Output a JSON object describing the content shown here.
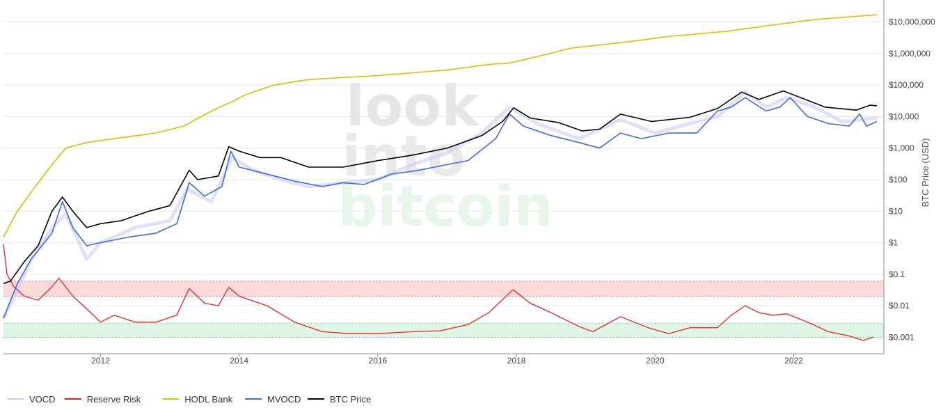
{
  "watermark": {
    "line1": "look",
    "line2": "into",
    "line3": "bitcoin"
  },
  "colors": {
    "vocd": "#c9cdf5",
    "reserve_risk": "#e8231f",
    "hodl_bank": "#d4c200",
    "mvocd": "#3f6ad8",
    "btc_price": "#000000",
    "band_high": "#ffd6d6",
    "band_low": "#dcf4e3"
  },
  "chart_data": {
    "type": "line",
    "xlabel": "",
    "ylabel": "BTC Price (USD)",
    "yscale": "log",
    "xlim": [
      2010.6,
      2023.3
    ],
    "ylim": [
      0.0003,
      50000000
    ],
    "x_ticks": [
      "2012",
      "2014",
      "2016",
      "2018",
      "2020",
      "2022"
    ],
    "y_ticks": [
      "$0.001",
      "$0.01",
      "$0.1",
      "$1",
      "$10",
      "$100",
      "$1,000",
      "$10,000",
      "$100,000",
      "$1,000,000",
      "$10,000,000"
    ],
    "bands": [
      {
        "label": "",
        "from": 0.02,
        "to": 0.06
      },
      {
        "label": "",
        "from": 0.001,
        "to": 0.0028
      }
    ],
    "legend": {
      "placement": "bottom-left"
    },
    "series": [
      {
        "name": "VOCD",
        "points": [
          [
            2010.6,
            0.004
          ],
          [
            2010.8,
            0.03
          ],
          [
            2011.0,
            0.3
          ],
          [
            2011.3,
            3
          ],
          [
            2011.5,
            8
          ],
          [
            2011.8,
            0.3
          ],
          [
            2012.0,
            1
          ],
          [
            2012.5,
            3
          ],
          [
            2013.0,
            5
          ],
          [
            2013.25,
            50
          ],
          [
            2013.6,
            20
          ],
          [
            2013.9,
            500
          ],
          [
            2014.2,
            200
          ],
          [
            2014.6,
            100
          ],
          [
            2015.0,
            60
          ],
          [
            2015.5,
            80
          ],
          [
            2016.0,
            100
          ],
          [
            2016.5,
            300
          ],
          [
            2017.0,
            700
          ],
          [
            2017.5,
            3000
          ],
          [
            2017.9,
            20000
          ],
          [
            2018.3,
            6000
          ],
          [
            2018.9,
            2000
          ],
          [
            2019.5,
            8000
          ],
          [
            2020.0,
            3000
          ],
          [
            2020.5,
            6000
          ],
          [
            2020.9,
            10000
          ],
          [
            2021.3,
            60000
          ],
          [
            2021.6,
            20000
          ],
          [
            2021.9,
            40000
          ],
          [
            2022.3,
            20000
          ],
          [
            2022.7,
            7000
          ],
          [
            2023.0,
            8000
          ],
          [
            2023.2,
            9000
          ]
        ]
      },
      {
        "name": "Reserve Risk",
        "points": [
          [
            2010.6,
            0.9
          ],
          [
            2010.65,
            0.1
          ],
          [
            2010.75,
            0.04
          ],
          [
            2010.9,
            0.02
          ],
          [
            2011.1,
            0.015
          ],
          [
            2011.3,
            0.04
          ],
          [
            2011.4,
            0.075
          ],
          [
            2011.6,
            0.02
          ],
          [
            2011.8,
            0.008
          ],
          [
            2012.0,
            0.003
          ],
          [
            2012.2,
            0.005
          ],
          [
            2012.5,
            0.003
          ],
          [
            2012.8,
            0.003
          ],
          [
            2013.1,
            0.005
          ],
          [
            2013.28,
            0.035
          ],
          [
            2013.5,
            0.012
          ],
          [
            2013.7,
            0.01
          ],
          [
            2013.85,
            0.038
          ],
          [
            2014.0,
            0.02
          ],
          [
            2014.4,
            0.01
          ],
          [
            2014.8,
            0.003
          ],
          [
            2015.2,
            0.0015
          ],
          [
            2015.6,
            0.0013
          ],
          [
            2016.0,
            0.0013
          ],
          [
            2016.5,
            0.0015
          ],
          [
            2016.9,
            0.0016
          ],
          [
            2017.3,
            0.0025
          ],
          [
            2017.6,
            0.006
          ],
          [
            2017.95,
            0.032
          ],
          [
            2018.2,
            0.012
          ],
          [
            2018.5,
            0.006
          ],
          [
            2018.9,
            0.0022
          ],
          [
            2019.1,
            0.0015
          ],
          [
            2019.5,
            0.0045
          ],
          [
            2019.9,
            0.002
          ],
          [
            2020.2,
            0.0013
          ],
          [
            2020.5,
            0.002
          ],
          [
            2020.9,
            0.002
          ],
          [
            2021.1,
            0.005
          ],
          [
            2021.3,
            0.01
          ],
          [
            2021.5,
            0.006
          ],
          [
            2021.7,
            0.005
          ],
          [
            2021.9,
            0.0055
          ],
          [
            2022.2,
            0.003
          ],
          [
            2022.5,
            0.0015
          ],
          [
            2022.8,
            0.0011
          ],
          [
            2023.0,
            0.0008
          ],
          [
            2023.15,
            0.001
          ]
        ]
      },
      {
        "name": "HODL Bank",
        "points": [
          [
            2010.6,
            1.5
          ],
          [
            2010.8,
            10
          ],
          [
            2011.0,
            40
          ],
          [
            2011.3,
            300
          ],
          [
            2011.5,
            1000
          ],
          [
            2011.8,
            1500
          ],
          [
            2012.2,
            2000
          ],
          [
            2012.8,
            3000
          ],
          [
            2013.2,
            5000
          ],
          [
            2013.6,
            15000
          ],
          [
            2013.9,
            30000
          ],
          [
            2014.1,
            50000
          ],
          [
            2014.5,
            100000
          ],
          [
            2015.0,
            150000
          ],
          [
            2016.0,
            200000
          ],
          [
            2017.0,
            300000
          ],
          [
            2017.6,
            450000
          ],
          [
            2017.9,
            500000
          ],
          [
            2018.3,
            800000
          ],
          [
            2018.8,
            1500000
          ],
          [
            2019.5,
            2200000
          ],
          [
            2020.2,
            3500000
          ],
          [
            2021.0,
            5000000
          ],
          [
            2021.7,
            8000000
          ],
          [
            2022.3,
            12000000
          ],
          [
            2023.2,
            17000000
          ]
        ]
      },
      {
        "name": "MVOCD",
        "points": [
          [
            2010.6,
            0.004
          ],
          [
            2010.8,
            0.05
          ],
          [
            2011.0,
            0.3
          ],
          [
            2011.3,
            2
          ],
          [
            2011.45,
            20
          ],
          [
            2011.6,
            3
          ],
          [
            2011.8,
            0.8
          ],
          [
            2012.0,
            1
          ],
          [
            2012.4,
            1.5
          ],
          [
            2012.8,
            2
          ],
          [
            2013.1,
            4
          ],
          [
            2013.28,
            80
          ],
          [
            2013.5,
            30
          ],
          [
            2013.75,
            60
          ],
          [
            2013.88,
            800
          ],
          [
            2014.0,
            250
          ],
          [
            2014.4,
            150
          ],
          [
            2014.8,
            90
          ],
          [
            2015.2,
            60
          ],
          [
            2015.5,
            80
          ],
          [
            2015.8,
            70
          ],
          [
            2016.2,
            150
          ],
          [
            2016.6,
            200
          ],
          [
            2017.0,
            300
          ],
          [
            2017.3,
            400
          ],
          [
            2017.7,
            2000
          ],
          [
            2017.9,
            12000
          ],
          [
            2018.1,
            5000
          ],
          [
            2018.5,
            2500
          ],
          [
            2018.9,
            1500
          ],
          [
            2019.2,
            1000
          ],
          [
            2019.5,
            3000
          ],
          [
            2019.8,
            2000
          ],
          [
            2020.2,
            3000
          ],
          [
            2020.6,
            3000
          ],
          [
            2020.9,
            15000
          ],
          [
            2021.1,
            20000
          ],
          [
            2021.3,
            40000
          ],
          [
            2021.6,
            15000
          ],
          [
            2021.8,
            20000
          ],
          [
            2021.95,
            40000
          ],
          [
            2022.2,
            10000
          ],
          [
            2022.5,
            6000
          ],
          [
            2022.8,
            5000
          ],
          [
            2022.95,
            12000
          ],
          [
            2023.05,
            5000
          ],
          [
            2023.2,
            7000
          ]
        ]
      },
      {
        "name": "BTC Price",
        "points": [
          [
            2010.6,
            0.05
          ],
          [
            2010.7,
            0.06
          ],
          [
            2010.9,
            0.25
          ],
          [
            2011.1,
            0.8
          ],
          [
            2011.3,
            10
          ],
          [
            2011.45,
            28
          ],
          [
            2011.6,
            10
          ],
          [
            2011.8,
            3
          ],
          [
            2012.0,
            4
          ],
          [
            2012.3,
            5
          ],
          [
            2012.7,
            10
          ],
          [
            2013.0,
            15
          ],
          [
            2013.28,
            200
          ],
          [
            2013.4,
            100
          ],
          [
            2013.7,
            130
          ],
          [
            2013.85,
            1100
          ],
          [
            2014.0,
            800
          ],
          [
            2014.3,
            500
          ],
          [
            2014.6,
            500
          ],
          [
            2015.0,
            250
          ],
          [
            2015.5,
            250
          ],
          [
            2016.0,
            400
          ],
          [
            2016.5,
            600
          ],
          [
            2017.0,
            1000
          ],
          [
            2017.5,
            2500
          ],
          [
            2017.8,
            7000
          ],
          [
            2017.96,
            19000
          ],
          [
            2018.2,
            9000
          ],
          [
            2018.6,
            6500
          ],
          [
            2018.95,
            3500
          ],
          [
            2019.2,
            4000
          ],
          [
            2019.5,
            12000
          ],
          [
            2019.95,
            7000
          ],
          [
            2020.2,
            8000
          ],
          [
            2020.5,
            9500
          ],
          [
            2020.9,
            18000
          ],
          [
            2021.25,
            60000
          ],
          [
            2021.5,
            35000
          ],
          [
            2021.85,
            65000
          ],
          [
            2022.1,
            40000
          ],
          [
            2022.45,
            20000
          ],
          [
            2022.9,
            16000
          ],
          [
            2023.1,
            23000
          ],
          [
            2023.2,
            22000
          ]
        ]
      }
    ]
  }
}
